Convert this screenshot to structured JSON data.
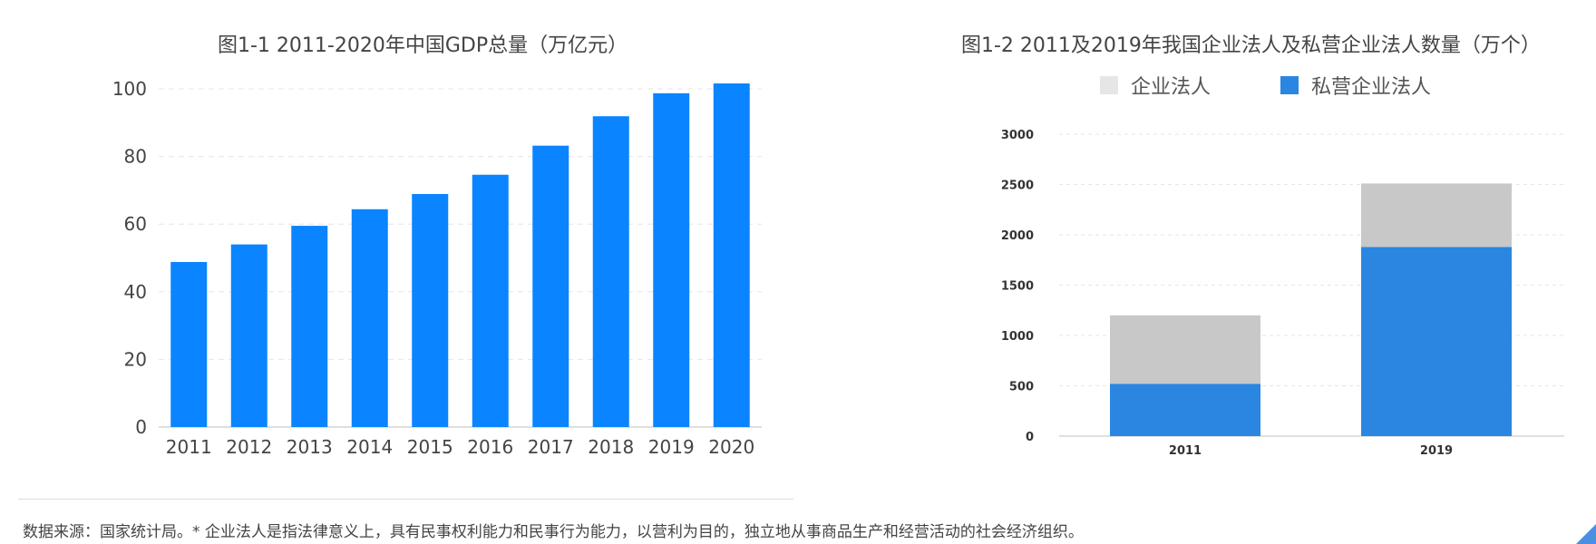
{
  "chart_data": [
    {
      "type": "bar",
      "title": "图1-1 2011-2020年中国GDP总量（万亿元）",
      "categories": [
        "2011",
        "2012",
        "2013",
        "2014",
        "2015",
        "2016",
        "2017",
        "2018",
        "2019",
        "2020"
      ],
      "values": [
        48.8,
        54.0,
        59.5,
        64.4,
        68.9,
        74.6,
        83.2,
        91.9,
        98.7,
        101.6
      ],
      "yticks": [
        "0",
        "20",
        "40",
        "60",
        "80",
        "100"
      ],
      "ylim": [
        0,
        100
      ],
      "grid": true,
      "color": "#0a84ff"
    },
    {
      "type": "bar",
      "stacked": true,
      "title": "图1-2 2011及2019年我国企业法人及私营企业法人数量（万个）",
      "categories": [
        "2011",
        "2019"
      ],
      "series": [
        {
          "name": "私营企业法人",
          "values": [
            520,
            1880
          ],
          "color": "#2a86e0"
        },
        {
          "name": "企业法人",
          "values": [
            680,
            630
          ],
          "color": "#c8c8c8"
        }
      ],
      "legend": [
        {
          "name": "企业法人",
          "color": "#e6e6e6"
        },
        {
          "name": "私营企业法人",
          "color": "#2a86e0"
        }
      ],
      "yticks": [
        "0",
        "500",
        "1000",
        "1500",
        "2000",
        "2500",
        "3000"
      ],
      "ylim": [
        0,
        3000
      ],
      "grid": true,
      "legend_position": "top-center"
    }
  ],
  "footnote": "数据来源：国家统计局。* 企业法人是指法律意义上，具有民事权利能力和民事行为能力，以营利为目的，独立地从事商品生产和经营活动的社会经济组织。"
}
